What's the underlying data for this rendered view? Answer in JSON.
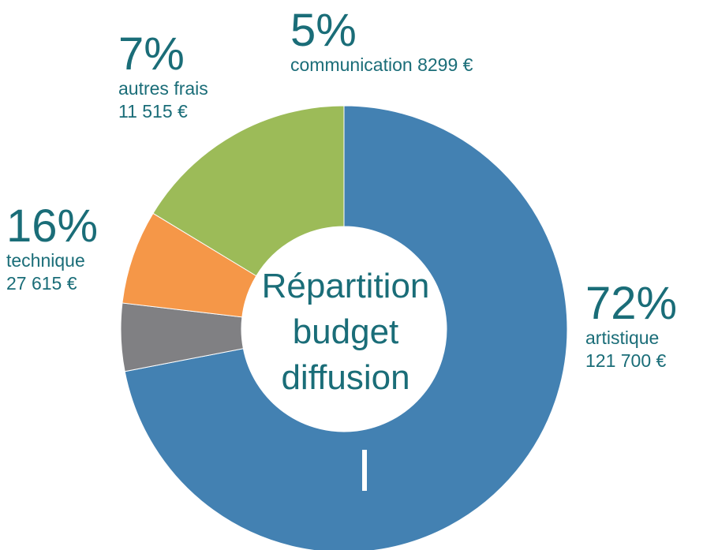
{
  "chart_data": {
    "type": "pie",
    "variant": "donut",
    "center_title": [
      "Répartition",
      "budget",
      "diffusion"
    ],
    "slices": [
      {
        "category": "artistique",
        "percent_label": "72%",
        "amount_label": "121 700 €",
        "value": 121700,
        "color": "#4381b2"
      },
      {
        "category": "communication",
        "percent_label": "5%",
        "amount_label": "8299 €",
        "value": 8299,
        "color": "#808083"
      },
      {
        "category": "autres frais",
        "percent_label": "7%",
        "amount_label": "11 515 €",
        "value": 11515,
        "color": "#f59748"
      },
      {
        "category": "technique",
        "percent_label": "16%",
        "amount_label": "27 615 €",
        "value": 27615,
        "color": "#9cbb58"
      }
    ],
    "label_color": "#1a6d78"
  }
}
